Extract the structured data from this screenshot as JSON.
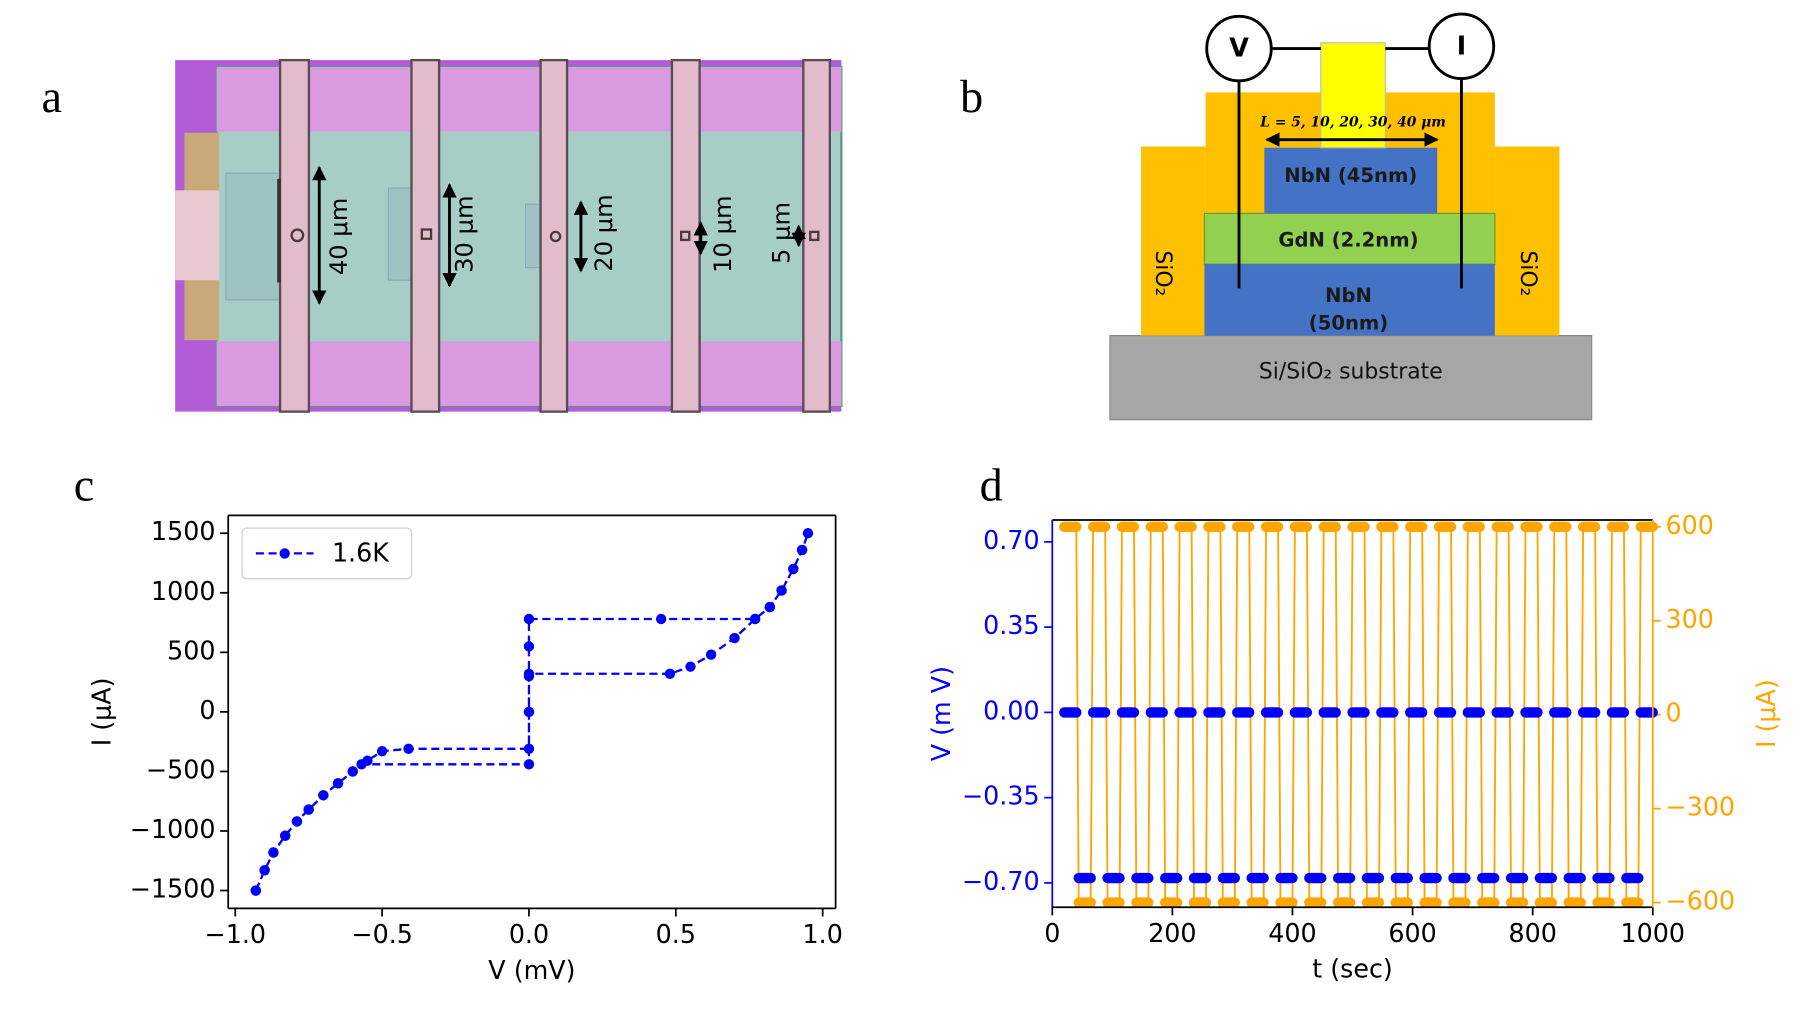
{
  "panels": {
    "a": {
      "label": "a",
      "scale_bars": [
        "40 μm",
        "30 μm",
        "20 μm",
        "10 μm",
        "5 μm"
      ]
    },
    "b": {
      "label": "b",
      "meter_v": "V",
      "meter_i": "I",
      "length": "L = 5, 10, 20, 30, 40 μm",
      "top_layer": "NbN (45nm)",
      "barrier": "GdN (2.2nm)",
      "bottom_layer": [
        "NbN",
        "(50nm)"
      ],
      "insulator_left": "SiO₂",
      "insulator_right": "SiO₂",
      "substrate": "Si/SiO₂ substrate"
    }
  },
  "chart_data": [
    {
      "panel": "c",
      "type": "line",
      "x": [
        -0.93,
        -0.9,
        -0.87,
        -0.83,
        -0.79,
        -0.75,
        -0.7,
        -0.65,
        -0.6,
        -0.55,
        -0.5,
        -0.41,
        0,
        0,
        0,
        0,
        0,
        0.45,
        0.77,
        0.82,
        0.86,
        0.9,
        0.93,
        0.95,
        0.93,
        0.9,
        0.86,
        0.82,
        0.77,
        0.7,
        0.62,
        0.55,
        0.48,
        0,
        0,
        0,
        -0.57,
        -0.6,
        -0.65,
        -0.7,
        -0.75,
        -0.79,
        -0.83,
        -0.87,
        -0.9,
        -0.93
      ],
      "series": [
        {
          "name": "1.6K",
          "color": "#0000ff",
          "linestyle": "dashed",
          "values": [
            -1500,
            -1330,
            -1180,
            -1040,
            -920,
            -820,
            -700,
            -600,
            -500,
            -410,
            -330,
            -310,
            -310,
            0,
            300,
            550,
            780,
            780,
            780,
            880,
            1020,
            1200,
            1360,
            1500,
            1360,
            1200,
            1020,
            880,
            780,
            620,
            480,
            380,
            320,
            320,
            0,
            -440,
            -440,
            -500,
            -600,
            -700,
            -820,
            -920,
            -1040,
            -1180,
            -1330,
            -1500
          ]
        }
      ],
      "xlabel": "V (mV)",
      "ylabel": "I (μA)",
      "xlim": [
        -1.024,
        1.044
      ],
      "ylim": [
        -1650,
        1650
      ],
      "xticks": [
        {
          "value": -1,
          "label": "−1.0"
        },
        {
          "value": -0.5,
          "label": "−0.5"
        },
        {
          "value": 0,
          "label": "0.0"
        },
        {
          "value": 0.5,
          "label": "0.5"
        },
        {
          "value": 1,
          "label": "1.0"
        }
      ],
      "yticks": [
        {
          "value": -1500,
          "label": "−1500"
        },
        {
          "value": -1000,
          "label": "−1000"
        },
        {
          "value": -500,
          "label": "−500"
        },
        0,
        500,
        1000,
        1500
      ],
      "legend": "upper left"
    },
    {
      "panel": "d",
      "type": "pulse",
      "x": [
        20,
        40,
        44,
        64,
        68,
        88,
        92,
        112,
        116,
        136,
        140,
        160,
        164,
        184,
        188,
        208,
        212,
        232,
        236,
        256,
        260,
        280,
        284,
        304,
        308,
        328,
        332,
        352,
        356,
        376,
        380,
        400,
        404,
        424,
        428,
        448,
        452,
        472,
        476,
        496,
        500,
        520,
        524,
        544,
        548,
        568,
        572,
        592,
        596,
        616,
        620,
        640,
        644,
        664,
        668,
        688,
        692,
        712,
        716,
        736,
        740,
        760,
        764,
        784,
        788,
        808,
        812,
        832,
        836,
        856,
        860,
        880,
        884,
        904,
        908,
        928,
        932,
        952,
        956,
        976,
        980,
        1000
      ],
      "series": [
        {
          "name": "V",
          "color": "#0000ff",
          "linestyle": "none",
          "axis": "y",
          "values": [
            0,
            0,
            -0.68,
            -0.68,
            0,
            0,
            -0.68,
            -0.68,
            0,
            0,
            -0.68,
            -0.68,
            0,
            0,
            -0.68,
            -0.68,
            0,
            0,
            -0.68,
            -0.68,
            0,
            0,
            -0.68,
            -0.68,
            0,
            0,
            -0.68,
            -0.68,
            0,
            0,
            -0.68,
            -0.68,
            0,
            0,
            -0.68,
            -0.68,
            0,
            0,
            -0.68,
            -0.68,
            0,
            0,
            -0.68,
            -0.68,
            0,
            0,
            -0.68,
            -0.68,
            0,
            0,
            -0.68,
            -0.68,
            0,
            0,
            -0.68,
            -0.68,
            0,
            0,
            -0.68,
            -0.68,
            0,
            0,
            -0.68,
            -0.68,
            0,
            0,
            -0.68,
            -0.68,
            0,
            0,
            -0.68,
            -0.68,
            0,
            0,
            -0.68,
            -0.68,
            0,
            0,
            -0.68,
            -0.68,
            0,
            0
          ]
        },
        {
          "name": "I",
          "color": "#ffa500",
          "linestyle": "solid",
          "axis": "y2",
          "values": [
            600,
            600,
            -600,
            -600,
            600,
            600,
            -600,
            -600,
            600,
            600,
            -600,
            -600,
            600,
            600,
            -600,
            -600,
            600,
            600,
            -600,
            -600,
            600,
            600,
            -600,
            -600,
            600,
            600,
            -600,
            -600,
            600,
            600,
            -600,
            -600,
            600,
            600,
            -600,
            -600,
            600,
            600,
            -600,
            -600,
            600,
            600,
            -600,
            -600,
            600,
            600,
            -600,
            -600,
            600,
            600,
            -600,
            -600,
            600,
            600,
            -600,
            -600,
            600,
            600,
            -600,
            -600,
            600,
            600,
            -600,
            -600,
            600,
            600,
            -600,
            -600,
            600,
            600,
            -600,
            -600,
            600,
            600,
            -600,
            -600,
            600,
            600,
            -600,
            -600,
            600,
            600
          ]
        }
      ],
      "xlabel": "t (sec)",
      "ylabel": "V (m V)",
      "y2label": "I (μA)",
      "xlim": [
        0,
        1000
      ],
      "ylim": [
        -0.8,
        0.79
      ],
      "y2lim": [
        -615,
        622
      ],
      "xticks": [
        0,
        200,
        400,
        600,
        800,
        1000
      ],
      "yticks": [
        {
          "value": 0.7,
          "label": "0.70"
        },
        {
          "value": 0.35,
          "label": "0.35"
        },
        {
          "value": 0,
          "label": "0.00"
        },
        {
          "value": -0.35,
          "label": "−0.35"
        },
        {
          "value": -0.7,
          "label": "−0.70"
        }
      ],
      "y2ticks": [
        600,
        300,
        0,
        {
          "value": -300,
          "label": "−300"
        },
        {
          "value": -600,
          "label": "−600"
        }
      ]
    }
  ]
}
